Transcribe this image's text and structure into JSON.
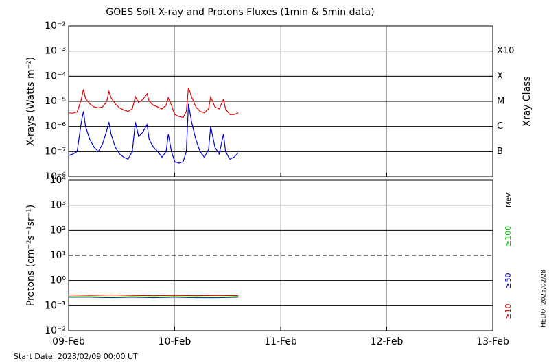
{
  "chart_data": [
    {
      "type": "line",
      "title": "GOES Soft X-ray and Protons Fluxes   (1min & 5min data)",
      "y_label": "X-rays (Watts m⁻²)",
      "y2_label": "Xray Class",
      "log_y": true,
      "grid": true,
      "xlim": [
        0,
        4
      ],
      "xticks": [
        0,
        1,
        2,
        3,
        4
      ],
      "ylim": [
        1e-08,
        0.01
      ],
      "yticks": [
        {
          "value": 1e-08,
          "label": "10⁻⁸"
        },
        {
          "value": 1e-07,
          "label": "10⁻⁷"
        },
        {
          "value": 1e-06,
          "label": "10⁻⁶"
        },
        {
          "value": 1e-05,
          "label": "10⁻⁵"
        },
        {
          "value": 0.0001,
          "label": "10⁻⁴"
        },
        {
          "value": 0.001,
          "label": "10⁻³"
        },
        {
          "value": 0.01,
          "label": "10⁻²"
        }
      ],
      "class_ticks": [
        {
          "value": 0.001,
          "label": "X10"
        },
        {
          "value": 0.0001,
          "label": "X"
        },
        {
          "value": 1e-05,
          "label": "M"
        },
        {
          "value": 1e-06,
          "label": "C"
        },
        {
          "value": 1e-07,
          "label": "B"
        }
      ],
      "x": [
        0,
        0.04,
        0.08,
        0.12,
        0.14,
        0.16,
        0.2,
        0.24,
        0.28,
        0.32,
        0.36,
        0.38,
        0.4,
        0.44,
        0.48,
        0.52,
        0.56,
        0.6,
        0.63,
        0.66,
        0.7,
        0.74,
        0.76,
        0.8,
        0.84,
        0.88,
        0.92,
        0.94,
        0.97,
        1.0,
        1.04,
        1.08,
        1.11,
        1.13,
        1.16,
        1.2,
        1.24,
        1.28,
        1.32,
        1.34,
        1.38,
        1.42,
        1.46,
        1.48,
        1.52,
        1.56,
        1.6
      ],
      "series": [
        {
          "color": "#e00000",
          "values": [
            3.5e-06,
            3.4e-06,
            3.8e-06,
            1.2e-05,
            3e-05,
            1.3e-05,
            8e-06,
            6e-06,
            5.5e-06,
            6e-06,
            1e-05,
            2.5e-05,
            1.4e-05,
            8e-06,
            5.5e-06,
            4.5e-06,
            4e-06,
            5e-06,
            1.5e-05,
            9e-06,
            1.2e-05,
            2e-05,
            1e-05,
            7e-06,
            6e-06,
            5e-06,
            7e-06,
            1.4e-05,
            7e-06,
            3e-06,
            2.5e-06,
            2.3e-06,
            4e-06,
            3.5e-05,
            1.5e-05,
            6e-06,
            4e-06,
            3.5e-06,
            5e-06,
            1.5e-05,
            6e-06,
            5e-06,
            1.2e-05,
            5e-06,
            3e-06,
            3e-06,
            3.5e-06
          ]
        },
        {
          "color": "#0000d0",
          "values": [
            7e-08,
            8e-08,
            1e-07,
            1.5e-06,
            4e-06,
            1e-06,
            3e-07,
            1.5e-07,
            1e-07,
            2e-07,
            7e-07,
            1.5e-06,
            5e-07,
            1.5e-07,
            8e-08,
            6e-08,
            5e-08,
            1e-07,
            1.5e-06,
            4e-07,
            6e-07,
            1.2e-06,
            3e-07,
            1.5e-07,
            1e-07,
            6e-08,
            1e-07,
            5e-07,
            1e-07,
            4e-08,
            3.5e-08,
            4e-08,
            1e-07,
            8e-06,
            1.5e-06,
            3e-07,
            1e-07,
            6e-08,
            1.2e-07,
            1e-06,
            1.5e-07,
            8e-08,
            5e-07,
            1e-07,
            5e-08,
            6e-08,
            9e-08
          ]
        }
      ]
    },
    {
      "type": "line",
      "y_label": "Protons (cm⁻²s⁻¹sr⁻¹)",
      "log_y": true,
      "grid": true,
      "threshold": 10,
      "legend_title": "MeV",
      "legend": "right",
      "xlim": [
        0,
        4
      ],
      "xticks": [
        {
          "value": 0,
          "label": "09-Feb"
        },
        {
          "value": 1,
          "label": "10-Feb"
        },
        {
          "value": 2,
          "label": "11-Feb"
        },
        {
          "value": 3,
          "label": "12-Feb"
        },
        {
          "value": 4,
          "label": "13-Feb"
        }
      ],
      "ylim": [
        0.01,
        10000
      ],
      "yticks": [
        {
          "value": 0.01,
          "label": "10⁻²"
        },
        {
          "value": 0.1,
          "label": "10⁻¹"
        },
        {
          "value": 1,
          "label": "10⁰"
        },
        {
          "value": 10,
          "label": "10¹"
        },
        {
          "value": 100,
          "label": "10²"
        },
        {
          "value": 1000,
          "label": "10³"
        },
        {
          "value": 10000,
          "label": "10⁴"
        }
      ],
      "x": [
        0,
        0.2,
        0.4,
        0.6,
        0.8,
        1.0,
        1.2,
        1.4,
        1.6
      ],
      "series": [
        {
          "name": "≥10",
          "color": "#e00000",
          "values": [
            0.27,
            0.26,
            0.27,
            0.26,
            0.25,
            0.26,
            0.25,
            0.26,
            0.25
          ]
        },
        {
          "name": "≥50",
          "color": "#0000d0",
          "values": [
            0.22,
            0.22,
            0.21,
            0.22,
            0.21,
            0.22,
            0.21,
            0.21,
            0.22
          ]
        },
        {
          "name": "≥100",
          "color": "#00c000",
          "values": [
            0.23,
            0.23,
            0.22,
            0.23,
            0.22,
            0.23,
            0.22,
            0.22,
            0.23
          ]
        }
      ]
    }
  ],
  "footer": {
    "start": "Start Date: 2023/02/09 00:00 UT",
    "helio": "HELIO: 2023/02/28"
  }
}
